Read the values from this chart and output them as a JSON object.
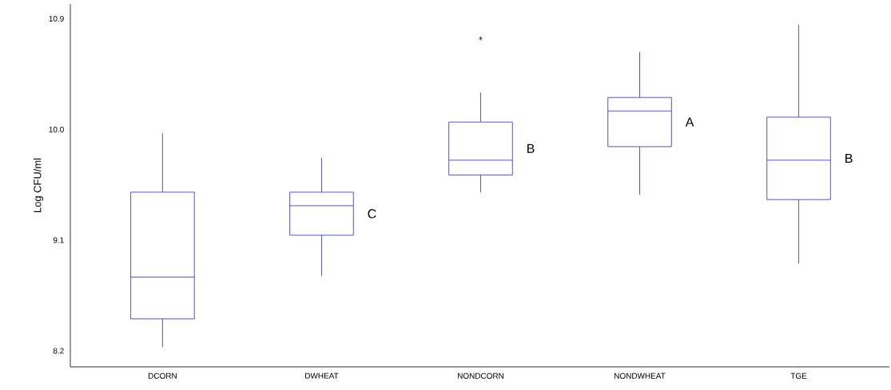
{
  "chart_data": {
    "type": "box",
    "ylabel": "Log CFU/ml",
    "categories": [
      "DCORN",
      "DWHEAT",
      "NONDCORN",
      "NONDWHEAT",
      "TGE"
    ],
    "color": "#3b3bf5",
    "boxes": [
      {
        "low": 8.23,
        "q1": 8.46,
        "median": 8.8,
        "q3": 9.49,
        "high": 9.97
      },
      {
        "low": 8.81,
        "q1": 9.14,
        "median": 9.38,
        "q3": 9.49,
        "high": 9.77
      },
      {
        "low": 9.49,
        "q1": 9.63,
        "median": 9.75,
        "q3": 10.06,
        "high": 10.3,
        "outliers": [
          10.74
        ]
      },
      {
        "low": 9.47,
        "q1": 9.86,
        "median": 10.15,
        "q3": 10.26,
        "high": 10.63
      },
      {
        "low": 8.91,
        "q1": 9.43,
        "median": 9.75,
        "q3": 10.1,
        "high": 10.85
      }
    ],
    "ylim": [
      8.07,
      11.02
    ],
    "yticks": [
      8.2,
      9.1,
      {
        "value": 10,
        "label": "10.0"
      },
      10.9
    ],
    "marker": "star",
    "annotations": [
      "C",
      "B",
      "A",
      "B"
    ]
  }
}
